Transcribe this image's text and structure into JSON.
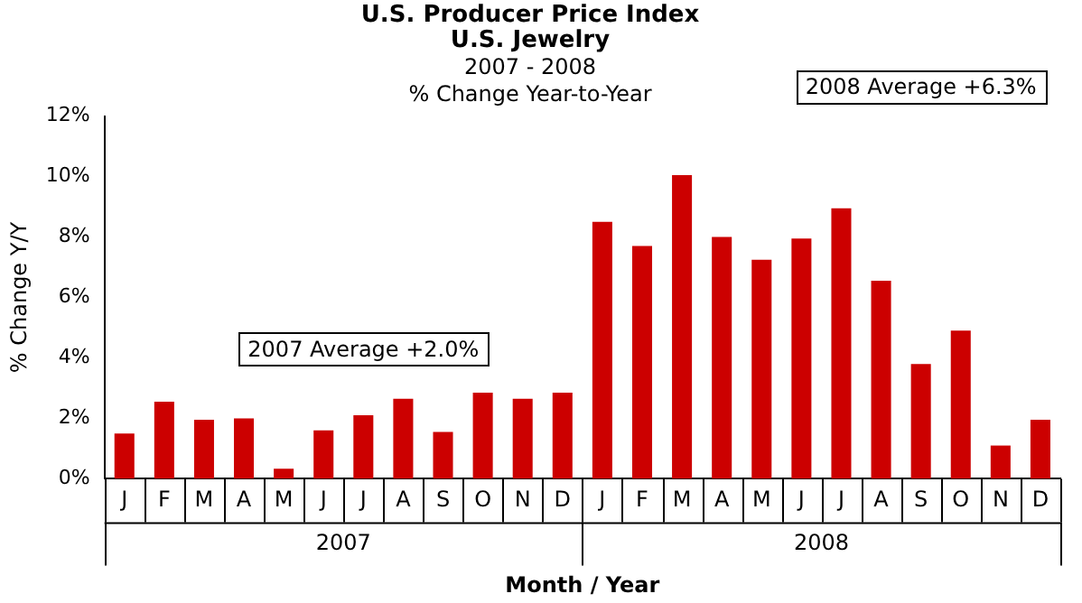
{
  "chart_data": {
    "type": "bar",
    "title": "U.S. Producer Price Index\nU.S. Jewelry",
    "subtitle": "2007 - 2008\n% Change Year-to-Year",
    "xlabel": "Month / Year",
    "ylabel": "% Change Y/Y",
    "categories": [
      "J",
      "F",
      "M",
      "A",
      "M",
      "J",
      "J",
      "A",
      "S",
      "O",
      "N",
      "D",
      "J",
      "F",
      "M",
      "A",
      "M",
      "J",
      "J",
      "A",
      "S",
      "O",
      "N",
      "D"
    ],
    "values": [
      1.5,
      2.55,
      1.95,
      2.0,
      0.33,
      1.6,
      2.1,
      2.65,
      1.55,
      2.85,
      2.65,
      2.85,
      8.5,
      7.7,
      10.05,
      8.0,
      7.25,
      7.95,
      8.95,
      6.55,
      3.8,
      4.9,
      1.1,
      1.95
    ],
    "color": "#cc0000",
    "ylim": [
      0,
      12
    ],
    "yticks": [
      {
        "value": 0,
        "label": "0%"
      },
      {
        "value": 2,
        "label": "2%"
      },
      {
        "value": 4,
        "label": "4%"
      },
      {
        "value": 6,
        "label": "6%"
      },
      {
        "value": 8,
        "label": "8%"
      },
      {
        "value": 10,
        "label": "10%"
      },
      {
        "value": 12,
        "label": "12%"
      }
    ],
    "grid": false,
    "legend": false,
    "annotations": [
      "2007 Average +2.0%",
      "2008 Average +6.3%",
      "2007",
      "2008"
    ]
  }
}
